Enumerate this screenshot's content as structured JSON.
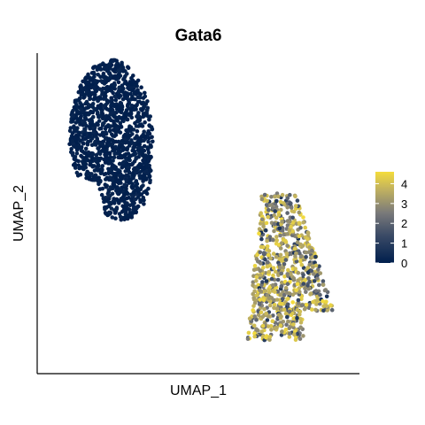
{
  "chart_data": {
    "type": "scatter",
    "title": "Gata6",
    "xlabel": "UMAP_1",
    "ylabel": "UMAP_2",
    "xlim": [
      -12,
      12
    ],
    "ylim": [
      -12,
      12
    ],
    "grid": false,
    "legend": {
      "placement": "right",
      "type": "colorbar",
      "ticks": [
        "0",
        "1",
        "2",
        "3",
        "4"
      ],
      "min": 0,
      "max": 4.6
    },
    "colors": {
      "low": "#001f4d",
      "mid": "#7a7a7a",
      "high": "#f4dc3c"
    },
    "clusters": [
      {
        "label": "",
        "center": [
          -6.5,
          5.5
        ],
        "spread": [
          3.1,
          6.0
        ],
        "expression_range": [
          0,
          0.3
        ],
        "approx_points": 1400
      },
      {
        "label": "",
        "center": [
          6.0,
          -4.0
        ],
        "spread": [
          3.6,
          5.5
        ],
        "expression_range": [
          0.2,
          4.6
        ],
        "approx_points": 900
      }
    ]
  }
}
